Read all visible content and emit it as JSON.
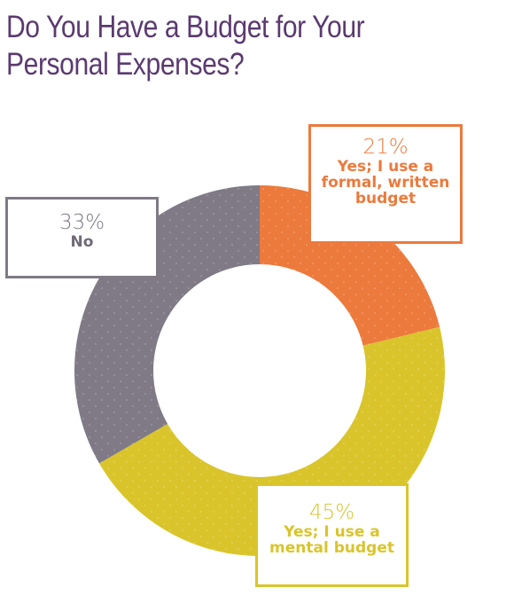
{
  "title": "Do You Have a Budget for Your Personal Expenses?",
  "chart_data": {
    "type": "pie",
    "style": "donut",
    "title": "Do You Have a Budget for Your Personal Expenses?",
    "categories": [
      "Yes; I use a formal, written budget",
      "Yes; I use a mental budget",
      "No"
    ],
    "values": [
      21,
      45,
      33
    ],
    "unit": "%",
    "colors": [
      "#ec7a3c",
      "#d9c52b",
      "#7f7a86"
    ],
    "labels": [
      {
        "pct": "21%",
        "text": "Yes; I use a formal, written budget"
      },
      {
        "pct": "45%",
        "text": "Yes; I use a mental budget"
      },
      {
        "pct": "33%",
        "text": "No"
      }
    ]
  }
}
